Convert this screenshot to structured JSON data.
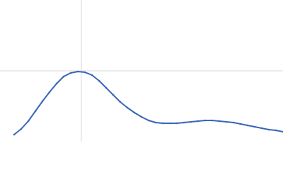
{
  "chart_data": {
    "type": "scatter",
    "color": "#3a66b8",
    "xlim": [
      0,
      400
    ],
    "ylim": [
      0,
      200
    ],
    "ref_x": [
      115
    ],
    "ref_y": [
      100
    ],
    "ref_color": "#d9d9d9",
    "x": [
      20,
      30,
      40,
      50,
      60,
      70,
      80,
      90,
      100,
      110,
      120,
      130,
      140,
      150,
      160,
      170,
      180,
      190,
      200,
      210,
      220,
      230,
      240,
      250,
      260,
      270,
      280,
      290,
      300,
      310,
      320,
      330,
      340,
      350,
      360,
      370,
      380,
      390,
      400
    ],
    "values": [
      10,
      18,
      29,
      43,
      57,
      70,
      82,
      92,
      97,
      99,
      98,
      94,
      86,
      76,
      66,
      56,
      48,
      41,
      35,
      30,
      27,
      26,
      26,
      26,
      27,
      28,
      29,
      30,
      30,
      29,
      28,
      27,
      25,
      23,
      21,
      19,
      17,
      16,
      14
    ]
  }
}
